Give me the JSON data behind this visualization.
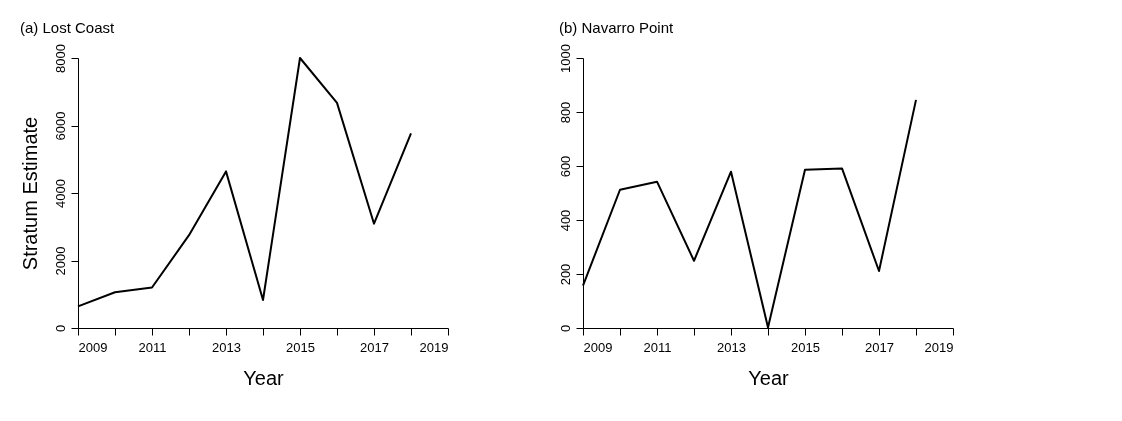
{
  "chart_data": [
    {
      "type": "line",
      "title": "(a) Lost Coast",
      "xlabel": "Year",
      "ylabel": "Stratum Estimate",
      "x": [
        2009,
        2010,
        2011,
        2012,
        2013,
        2014,
        2015,
        2016,
        2017,
        2018
      ],
      "series": [
        {
          "color": "#000000",
          "values": [
            640,
            1060,
            1200,
            2750,
            4640,
            830,
            8000,
            6670,
            3090,
            5770
          ]
        }
      ],
      "xlim": [
        2009,
        2019
      ],
      "ylim": [
        0,
        8000
      ],
      "xticks": [
        2009,
        {
          "value": 2010,
          "label": null
        },
        2011,
        {
          "value": 2012,
          "label": null
        },
        2013,
        {
          "value": 2014,
          "label": null
        },
        2015,
        {
          "value": 2016,
          "label": null
        },
        2017,
        {
          "value": 2018,
          "label": null
        },
        2019
      ],
      "yticks": [
        0,
        2000,
        4000,
        6000,
        8000
      ],
      "grid": false,
      "line_style": "solid"
    },
    {
      "type": "line",
      "title": "(b) Navarro Point",
      "xlabel": "Year",
      "x": [
        2009,
        2010,
        2011,
        2012,
        2013,
        2014,
        2015,
        2016,
        2017,
        2018
      ],
      "series": [
        {
          "color": "#000000",
          "values": [
            157,
            512,
            542,
            249,
            579,
            2,
            586,
            591,
            211,
            845
          ]
        }
      ],
      "xlim": [
        2009,
        2019
      ],
      "ylim": [
        0,
        1000
      ],
      "xticks": [
        2009,
        {
          "value": 2010,
          "label": null
        },
        2011,
        {
          "value": 2012,
          "label": null
        },
        2013,
        {
          "value": 2014,
          "label": null
        },
        2015,
        {
          "value": 2016,
          "label": null
        },
        2017,
        {
          "value": 2018,
          "label": null
        },
        2019
      ],
      "yticks": [
        0,
        200,
        400,
        600,
        800,
        1000
      ],
      "grid": false,
      "line_style": "solid"
    }
  ]
}
